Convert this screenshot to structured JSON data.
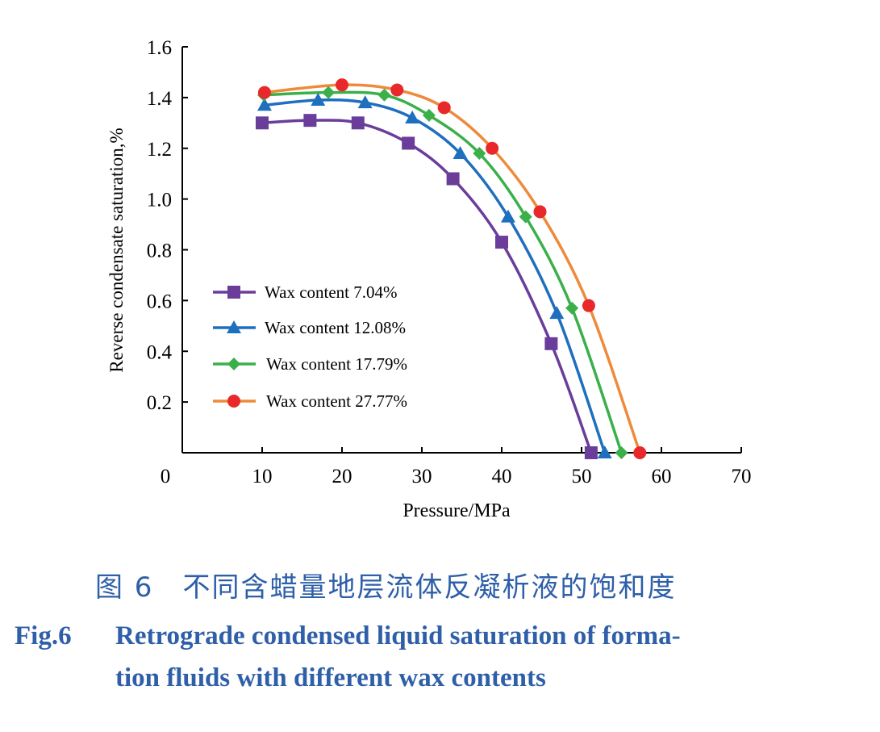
{
  "chart_data": {
    "type": "line",
    "xlabel": "Pressure/MPa",
    "ylabel": "Reverse condensate saturation,%",
    "xlim": [
      0,
      70
    ],
    "ylim": [
      0,
      1.6
    ],
    "xticks": [
      0,
      10,
      20,
      30,
      40,
      50,
      60,
      70
    ],
    "yticks": [
      0.2,
      0.4,
      0.6,
      0.8,
      1.0,
      1.2,
      1.4,
      1.6
    ],
    "ytick_labels": [
      "0.2",
      "0.4",
      "0.6",
      "0.8",
      "1.0",
      "1.2",
      "1.4",
      "1.6"
    ],
    "grid": false,
    "legend_placement": "center-left",
    "series": [
      {
        "name": "Wax content 7.04%",
        "marker": "square",
        "color": "#6a3d9a",
        "line_color": "#6a3d9a",
        "x": [
          10.0,
          16.0,
          22.0,
          28.3,
          33.9,
          40.0,
          46.2,
          51.2
        ],
        "y": [
          1.3,
          1.31,
          1.3,
          1.22,
          1.08,
          0.83,
          0.43,
          0.0
        ]
      },
      {
        "name": "Wax content 12.08%",
        "marker": "triangle",
        "color": "#1f6fbf",
        "line_color": "#1f6fbf",
        "x": [
          10.3,
          17.0,
          22.9,
          28.8,
          34.8,
          40.8,
          46.9,
          52.9
        ],
        "y": [
          1.37,
          1.39,
          1.38,
          1.32,
          1.18,
          0.93,
          0.55,
          0.0
        ]
      },
      {
        "name": "Wax content 17.79%",
        "marker": "diamond",
        "color": "#3bb04a",
        "line_color": "#3bb04a",
        "x": [
          10.2,
          18.3,
          25.3,
          30.9,
          37.2,
          43.0,
          48.8,
          55.0
        ],
        "y": [
          1.41,
          1.42,
          1.41,
          1.33,
          1.18,
          0.93,
          0.57,
          0.0
        ]
      },
      {
        "name": "Wax content 27.77%",
        "marker": "circle",
        "color": "#e8282a",
        "line_color": "#ee8a3a",
        "x": [
          10.3,
          20.0,
          26.9,
          32.8,
          38.8,
          44.8,
          50.9,
          57.3
        ],
        "y": [
          1.42,
          1.45,
          1.43,
          1.36,
          1.2,
          0.95,
          0.58,
          0.0
        ]
      }
    ]
  },
  "caption": {
    "cn": "图 6　不同含蜡量地层流体反凝析液的饱和度",
    "en_label": "Fig.6",
    "en_line1": "Retrograde condensed liquid saturation of forma-",
    "en_line2": "tion fluids with different wax contents"
  }
}
